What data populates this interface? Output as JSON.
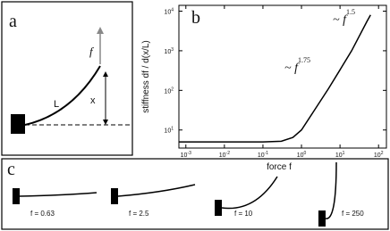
{
  "panel_a": {
    "label": "a",
    "force": "f",
    "length": "L",
    "displacement": "x"
  },
  "chart_data": {
    "type": "line",
    "panel_label": "b",
    "xlabel": "force f",
    "ylabel": "stiffness df / d(x/L)",
    "log_x": true,
    "log_y": true,
    "color": "#000000",
    "x": [
      0.00066,
      0.001,
      0.01,
      0.1,
      0.3,
      0.6,
      1,
      2,
      5,
      10,
      20,
      50,
      62
    ],
    "values": [
      5,
      5,
      5,
      5,
      5.2,
      6.5,
      10,
      28,
      110,
      330,
      1000,
      5500,
      8000
    ],
    "xlim": [
      0.00066,
      160
    ],
    "ylim": [
      3.5,
      14000
    ],
    "xticks": [
      {
        "value": 0.001,
        "label": "10",
        "exponent": "-3"
      },
      {
        "value": 0.01,
        "label": "10",
        "exponent": "-2"
      },
      {
        "value": 0.1,
        "label": "10",
        "exponent": "-1"
      },
      {
        "value": 1,
        "label": "10",
        "exponent": "0"
      },
      {
        "value": 10,
        "label": "10",
        "exponent": "1"
      },
      {
        "value": 100,
        "label": "10",
        "exponent": "2"
      }
    ],
    "yticks": [
      {
        "value": 10,
        "label": "10",
        "exponent": "1"
      },
      {
        "value": 100,
        "label": "10",
        "exponent": "2"
      },
      {
        "value": 1000,
        "label": "10",
        "exponent": "3"
      },
      {
        "value": 10000,
        "label": "10",
        "exponent": "4"
      }
    ],
    "annotations": [
      {
        "text": "~ f",
        "exponent": "1.5"
      },
      {
        "text": "~ f",
        "exponent": "1.75"
      }
    ]
  },
  "panel_c": {
    "label": "c",
    "cases": [
      "f = 0.63",
      "f = 2.5",
      "f = 10",
      "f = 250"
    ]
  }
}
